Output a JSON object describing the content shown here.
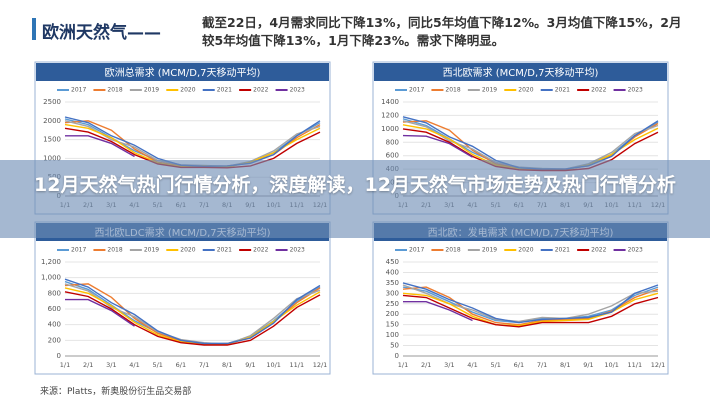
{
  "header": {
    "title": "欧洲天然气——",
    "summary": "截至22日，4月需求同比下降13%，同比5年均值下降12%。3月均值下降15%，2月较5年均值下降13%，1月下降23%。需求下降明显。"
  },
  "banner": "12月天然气热门行情分析，深度解读，12月天然气市场走势及热门行情分析",
  "source": "来源：Platts，新奥股份衍生品交易部",
  "chart_data": [
    {
      "type": "line",
      "title": "欧洲总需求 (MCM/D,7天移动平均)",
      "categories": [
        "1/1",
        "2/1",
        "3/1",
        "4/1",
        "5/1",
        "6/1",
        "7/1",
        "8/1",
        "9/1",
        "10/1",
        "11/1",
        "12/1"
      ],
      "ylim": [
        0,
        2500
      ],
      "yticks": [
        0,
        500,
        1000,
        1500,
        2000,
        2500
      ],
      "series": [
        {
          "name": "2017",
          "color": "#5b9bd5",
          "values": [
            2050,
            1900,
            1550,
            1200,
            950,
            820,
            800,
            780,
            900,
            1150,
            1600,
            1950
          ]
        },
        {
          "name": "2018",
          "color": "#ed7d31",
          "values": [
            1950,
            2000,
            1750,
            1250,
            900,
            800,
            790,
            800,
            880,
            1100,
            1550,
            1900
          ]
        },
        {
          "name": "2019",
          "color": "#a5a5a5",
          "values": [
            2000,
            1850,
            1500,
            1300,
            950,
            830,
            810,
            790,
            920,
            1200,
            1650,
            1850
          ]
        },
        {
          "name": "2020",
          "color": "#ffc000",
          "values": [
            1900,
            1800,
            1550,
            1150,
            880,
            780,
            800,
            770,
            900,
            1150,
            1500,
            1800
          ]
        },
        {
          "name": "2021",
          "color": "#4472c4",
          "values": [
            2100,
            1950,
            1600,
            1350,
            1000,
            820,
            790,
            800,
            870,
            1100,
            1600,
            2000
          ]
        },
        {
          "name": "2022",
          "color": "#c00000",
          "values": [
            1800,
            1700,
            1450,
            1100,
            850,
            760,
            760,
            750,
            800,
            1000,
            1400,
            1700
          ]
        },
        {
          "name": "2023",
          "color": "#7030a0",
          "values": [
            1600,
            1600,
            1400,
            1050,
            null,
            null,
            null,
            null,
            null,
            null,
            null,
            null
          ]
        }
      ]
    },
    {
      "type": "line",
      "title": "西北欧需求 (MCM/D,7天移动平均)",
      "categories": [
        "1/1",
        "2/1",
        "3/1",
        "4/1",
        "5/1",
        "6/1",
        "7/1",
        "8/1",
        "9/1",
        "10/1",
        "11/1",
        "12/1"
      ],
      "ylim": [
        0,
        1400
      ],
      "yticks": [
        0,
        200,
        400,
        600,
        800,
        1000,
        1200,
        1400
      ],
      "series": [
        {
          "name": "2017",
          "color": "#5b9bd5",
          "values": [
            1150,
            1050,
            850,
            650,
            500,
            420,
            400,
            390,
            470,
            620,
            900,
            1100
          ]
        },
        {
          "name": "2018",
          "color": "#ed7d31",
          "values": [
            1100,
            1120,
            980,
            680,
            480,
            410,
            400,
            400,
            450,
            600,
            880,
            1080
          ]
        },
        {
          "name": "2019",
          "color": "#a5a5a5",
          "values": [
            1120,
            1030,
            820,
            700,
            500,
            430,
            410,
            400,
            480,
            650,
            930,
            1050
          ]
        },
        {
          "name": "2020",
          "color": "#ffc000",
          "values": [
            1060,
            1000,
            850,
            620,
            460,
            400,
            400,
            390,
            460,
            620,
            840,
            1010
          ]
        },
        {
          "name": "2021",
          "color": "#4472c4",
          "values": [
            1180,
            1090,
            880,
            740,
            530,
            420,
            400,
            400,
            450,
            590,
            900,
            1120
          ]
        },
        {
          "name": "2022",
          "color": "#c00000",
          "values": [
            1000,
            950,
            800,
            590,
            440,
            390,
            380,
            380,
            410,
            540,
            780,
            950
          ]
        },
        {
          "name": "2023",
          "color": "#7030a0",
          "values": [
            900,
            890,
            780,
            580,
            null,
            null,
            null,
            null,
            null,
            null,
            null,
            null
          ]
        }
      ]
    },
    {
      "type": "line",
      "title": "西北欧LDC需求 (MCM/D,7天移动平均)",
      "categories": [
        "1/1",
        "2/1",
        "3/1",
        "4/1",
        "5/1",
        "6/1",
        "7/1",
        "8/1",
        "9/1",
        "10/1",
        "11/1",
        "12/1"
      ],
      "ylim": [
        0,
        1200
      ],
      "yticks": [
        0,
        200,
        400,
        600,
        800,
        {
          "value": 1000,
          "label": "1,000"
        },
        {
          "value": 1200,
          "label": "1,200"
        }
      ],
      "series": [
        {
          "name": "2017",
          "color": "#5b9bd5",
          "values": [
            950,
            850,
            650,
            450,
            300,
            200,
            160,
            160,
            250,
            450,
            700,
            880
          ]
        },
        {
          "name": "2018",
          "color": "#ed7d31",
          "values": [
            900,
            920,
            750,
            480,
            290,
            190,
            150,
            160,
            230,
            430,
            680,
            870
          ]
        },
        {
          "name": "2019",
          "color": "#a5a5a5",
          "values": [
            920,
            830,
            620,
            500,
            310,
            210,
            170,
            150,
            260,
            480,
            730,
            840
          ]
        },
        {
          "name": "2020",
          "color": "#ffc000",
          "values": [
            870,
            800,
            640,
            430,
            270,
            180,
            150,
            150,
            240,
            440,
            650,
            820
          ]
        },
        {
          "name": "2021",
          "color": "#4472c4",
          "values": [
            980,
            880,
            680,
            530,
            320,
            200,
            160,
            160,
            230,
            420,
            720,
            900
          ]
        },
        {
          "name": "2022",
          "color": "#c00000",
          "values": [
            820,
            760,
            600,
            400,
            250,
            170,
            140,
            140,
            200,
            380,
            620,
            780
          ]
        },
        {
          "name": "2023",
          "color": "#7030a0",
          "values": [
            720,
            720,
            580,
            380,
            null,
            null,
            null,
            null,
            null,
            null,
            null,
            null
          ]
        }
      ]
    },
    {
      "type": "line",
      "title": "西北欧：发电需求 (MCM/D,7天移动平均)",
      "categories": [
        "1/1",
        "2/1",
        "3/1",
        "4/1",
        "5/1",
        "6/1",
        "7/1",
        "8/1",
        "9/1",
        "10/1",
        "11/1",
        "12/1"
      ],
      "ylim": [
        0,
        450
      ],
      "yticks": [
        0,
        50,
        100,
        150,
        200,
        250,
        300,
        350,
        400,
        450
      ],
      "series": [
        {
          "name": "2017",
          "color": "#5b9bd5",
          "values": [
            330,
            310,
            260,
            210,
            170,
            160,
            180,
            180,
            190,
            220,
            290,
            330
          ]
        },
        {
          "name": "2018",
          "color": "#ed7d31",
          "values": [
            320,
            330,
            280,
            200,
            160,
            150,
            170,
            175,
            180,
            215,
            280,
            320
          ]
        },
        {
          "name": "2019",
          "color": "#a5a5a5",
          "values": [
            340,
            300,
            250,
            220,
            175,
            165,
            185,
            180,
            200,
            240,
            300,
            310
          ]
        },
        {
          "name": "2020",
          "color": "#ffc000",
          "values": [
            300,
            290,
            250,
            190,
            150,
            145,
            165,
            170,
            175,
            210,
            270,
            300
          ]
        },
        {
          "name": "2021",
          "color": "#4472c4",
          "values": [
            350,
            320,
            270,
            230,
            180,
            160,
            175,
            180,
            185,
            210,
            300,
            340
          ]
        },
        {
          "name": "2022",
          "color": "#c00000",
          "values": [
            290,
            280,
            230,
            180,
            150,
            140,
            160,
            160,
            160,
            190,
            250,
            280
          ]
        },
        {
          "name": "2023",
          "color": "#7030a0",
          "values": [
            260,
            260,
            220,
            170,
            null,
            null,
            null,
            null,
            null,
            null,
            null,
            null
          ]
        }
      ]
    }
  ]
}
